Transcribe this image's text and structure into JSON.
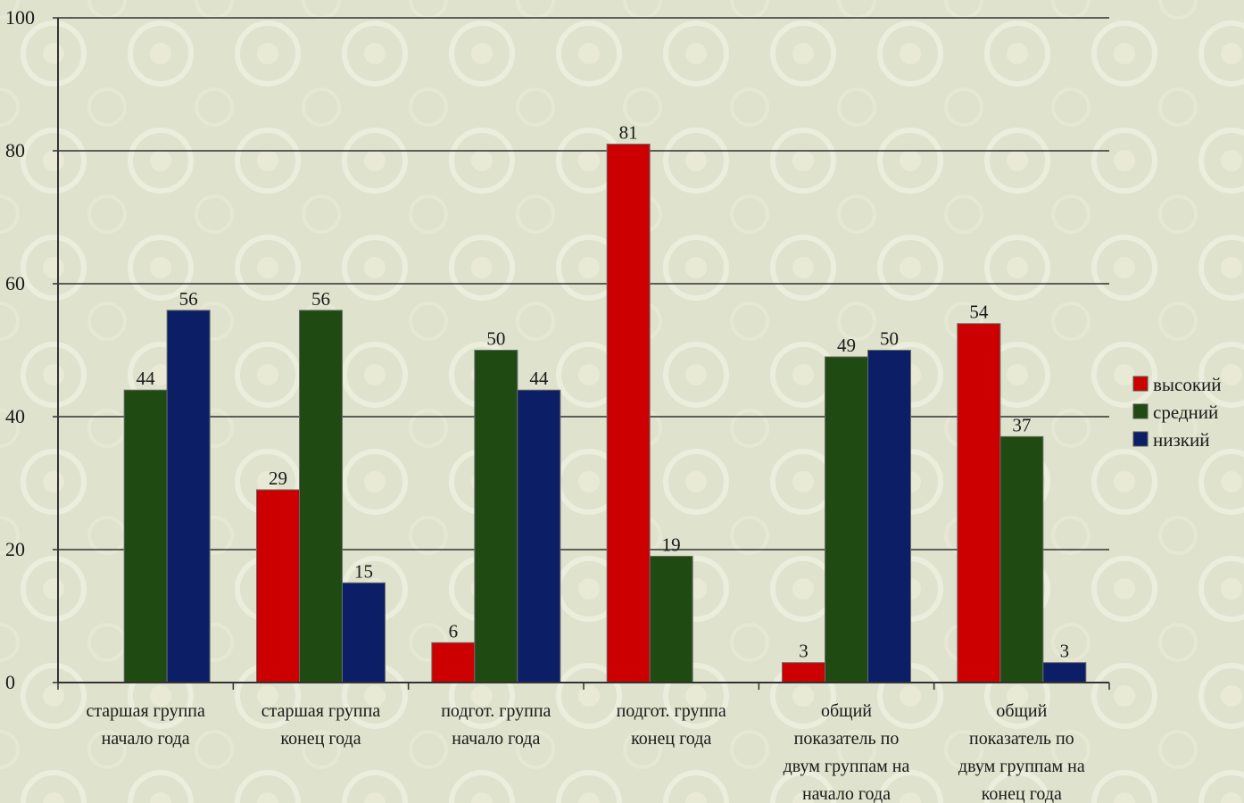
{
  "chart_data": {
    "type": "bar",
    "title": "",
    "xlabel": "",
    "ylabel": "",
    "ylim": [
      0,
      100
    ],
    "yticks": [
      0,
      20,
      40,
      60,
      80,
      100
    ],
    "grid": true,
    "legend_position": "right",
    "categories": [
      [
        "старшая группа",
        "начало года"
      ],
      [
        "старшая группа",
        "конец года"
      ],
      [
        "подгот. группа",
        "начало года"
      ],
      [
        "подгот. группа",
        "конец года"
      ],
      [
        "общий",
        "показатель по",
        "двум группам на",
        "начало года"
      ],
      [
        "общий",
        "показатель по",
        "двум группам на",
        "конец года"
      ]
    ],
    "series": [
      {
        "name": "высокий",
        "color": "#cc0000",
        "values": [
          null,
          29,
          6,
          81,
          3,
          54
        ]
      },
      {
        "name": "средний",
        "color": "#1f4a12",
        "values": [
          44,
          56,
          50,
          19,
          49,
          37
        ]
      },
      {
        "name": "низкий",
        "color": "#0c1f66",
        "values": [
          56,
          15,
          44,
          null,
          50,
          3
        ]
      }
    ]
  },
  "background": {
    "color": "#dfe2cc",
    "pattern_color": "#eceedd"
  }
}
